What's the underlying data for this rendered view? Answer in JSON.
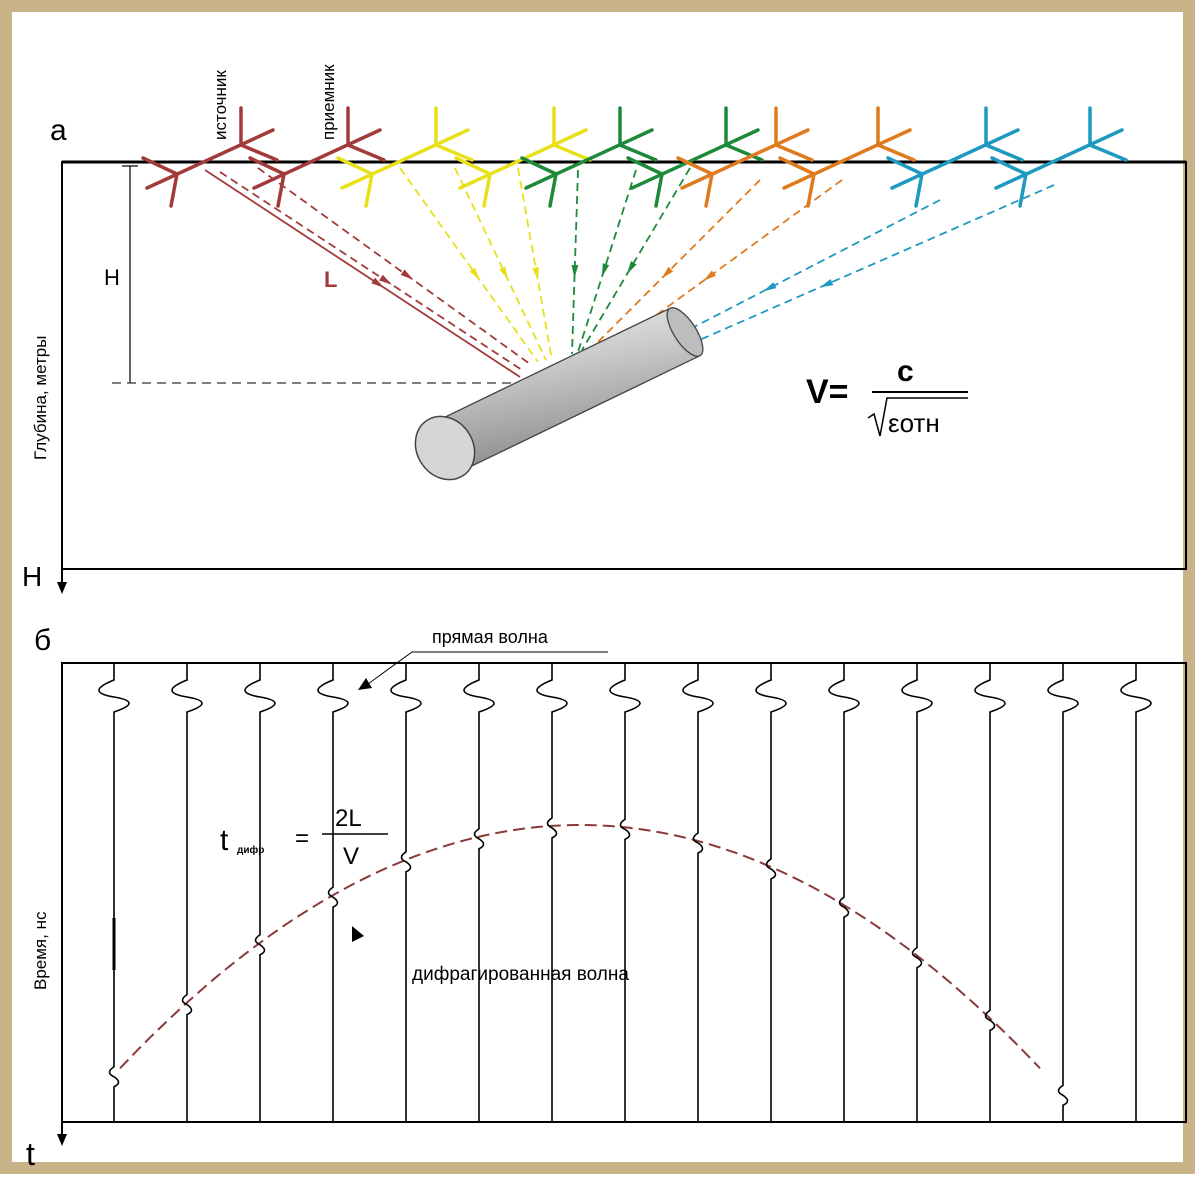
{
  "panel_a": {
    "label": "а",
    "source_label": "источник",
    "receiver_label": "приемник",
    "y_axis_label": "Глубина, метры",
    "depth_symbol": "H",
    "axis_end_label": "H",
    "path_label": "L",
    "formula": {
      "lhs": "V=",
      "numerator": "c",
      "denominator": "εотн"
    }
  },
  "panel_b": {
    "label": "б",
    "direct_wave_label": "прямая волна",
    "diffracted_wave_label": "дифрагированная волна",
    "y_axis_label": "Время, нс",
    "axis_end_label": "t",
    "formula": {
      "lhs": "t",
      "subscript": "дифр",
      "numerator": "2L",
      "denominator": "V"
    }
  },
  "antenna_colors": [
    "#a33a3a",
    "#a33a3a",
    "#e8e01a",
    "#e8e01a",
    "#1d8a3a",
    "#1d8a3a",
    "#e07a1e",
    "#e07a1e",
    "#1e9ac0",
    "#1e9ac0"
  ],
  "diffraction_curve_color": "#8b3a3a",
  "frame_color": "#c9b48a"
}
